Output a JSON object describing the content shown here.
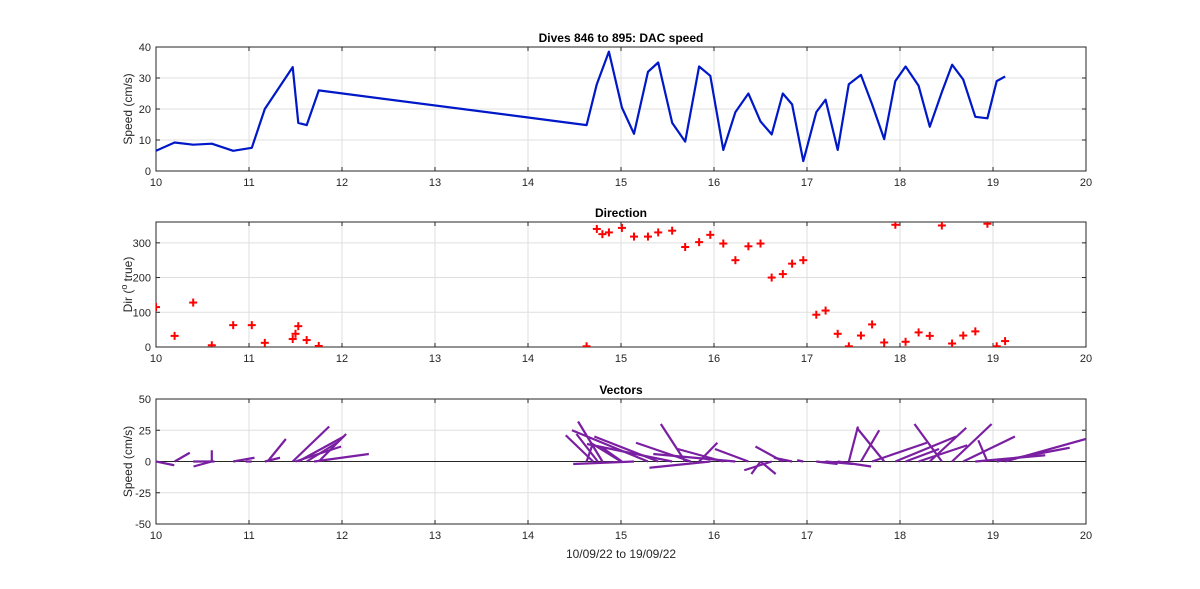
{
  "chart_data": [
    {
      "type": "line",
      "title": "Dives 846 to 895: DAC speed",
      "xlabel": "",
      "ylabel": "Speed (cm/s)",
      "xlim": [
        10,
        20
      ],
      "ylim": [
        0,
        40
      ],
      "xticks": [
        "10",
        "11",
        "12",
        "13",
        "14",
        "15",
        "16",
        "17",
        "18",
        "19",
        "20"
      ],
      "yticks": [
        "0",
        "10",
        "20",
        "30",
        "40"
      ],
      "grid": true,
      "color": "#0018c8",
      "series": [
        {
          "x": [
            10.0,
            10.2,
            10.4,
            10.6,
            10.83,
            11.03,
            11.17,
            11.47,
            11.53,
            11.62,
            11.75,
            14.63,
            14.74,
            14.87,
            15.01,
            15.14,
            15.29,
            15.4,
            15.55,
            15.69,
            15.84,
            15.96,
            16.1,
            16.23,
            16.37,
            16.5,
            16.62,
            16.74,
            16.84,
            16.96,
            17.1,
            17.2,
            17.33,
            17.45,
            17.58,
            17.7,
            17.83,
            17.95,
            18.06,
            18.2,
            18.32,
            18.45,
            18.56,
            18.68,
            18.81,
            18.94,
            19.04,
            19.13
          ],
          "y": [
            6.5,
            9.2,
            8.5,
            8.8,
            6.5,
            7.5,
            20,
            33.5,
            15.5,
            14.8,
            26,
            14.8,
            28,
            38.5,
            20.5,
            12,
            32,
            35,
            15.5,
            9.5,
            33.7,
            30.7,
            6.8,
            19,
            25,
            16,
            11.8,
            25,
            21.5,
            3.2,
            19,
            23,
            6.8,
            28,
            31,
            21.5,
            10.3,
            29,
            33.7,
            27.5,
            14.3,
            25.5,
            34.3,
            29.5,
            17.5,
            17,
            29,
            30.5
          ]
        }
      ]
    },
    {
      "type": "scatter",
      "title": "Direction",
      "xlabel": "",
      "ylabel": "Dir (° true)",
      "ylabel_parts": [
        "Dir (",
        "o",
        " true)"
      ],
      "xlim": [
        10,
        20
      ],
      "ylim": [
        0,
        360
      ],
      "xticks": [
        "10",
        "11",
        "12",
        "13",
        "14",
        "15",
        "16",
        "17",
        "18",
        "19",
        "20"
      ],
      "yticks": [
        "0",
        "100",
        "200",
        "300"
      ],
      "grid": true,
      "marker": "+",
      "color": "#ff0000",
      "series": [
        {
          "x": [
            10.0,
            10.2,
            10.4,
            10.6,
            10.83,
            11.03,
            11.17,
            11.47,
            11.5,
            11.53,
            11.62,
            11.75,
            14.63,
            14.74,
            14.8,
            14.87,
            15.01,
            15.14,
            15.29,
            15.4,
            15.55,
            15.69,
            15.84,
            15.96,
            16.1,
            16.23,
            16.37,
            16.5,
            16.62,
            16.74,
            16.84,
            16.96,
            17.1,
            17.2,
            17.33,
            17.45,
            17.58,
            17.7,
            17.83,
            17.95,
            18.06,
            18.2,
            18.32,
            18.45,
            18.56,
            18.68,
            18.81,
            18.94,
            19.04,
            19.13
          ],
          "y": [
            115,
            32,
            128,
            5,
            63,
            63,
            12,
            23,
            38,
            60,
            20,
            3,
            2,
            340,
            325,
            330,
            343,
            318,
            318,
            330,
            335,
            288,
            302,
            323,
            298,
            250,
            290,
            298,
            200,
            210,
            240,
            250,
            93,
            105,
            38,
            2,
            33,
            65,
            13,
            352,
            15,
            42,
            32,
            350,
            10,
            33,
            45,
            355,
            2,
            17
          ]
        }
      ]
    },
    {
      "type": "vector",
      "title": "Vectors",
      "xlabel": "10/09/22 to 19/09/22",
      "ylabel": "Speed (cm/s)",
      "xlim": [
        10,
        20
      ],
      "ylim": [
        -50,
        50
      ],
      "xticks": [
        "10",
        "11",
        "12",
        "13",
        "14",
        "15",
        "16",
        "17",
        "18",
        "19",
        "20"
      ],
      "yticks": [
        "-50",
        "-25",
        "0",
        "25",
        "50"
      ],
      "grid": true,
      "color": "#7a1fa2",
      "vectors": [
        {
          "x": 10.0,
          "u": 6,
          "v": -3
        },
        {
          "x": 10.2,
          "u": 5,
          "v": 7
        },
        {
          "x": 10.4,
          "u": 7,
          "v": 0
        },
        {
          "x": 10.6,
          "u": 0,
          "v": 9
        },
        {
          "x": 10.6,
          "u": -6,
          "v": -4
        },
        {
          "x": 10.83,
          "u": 7,
          "v": 3
        },
        {
          "x": 11.03,
          "u": -2,
          "v": 0
        },
        {
          "x": 11.17,
          "u": 5,
          "v": 3
        },
        {
          "x": 11.2,
          "u": 6,
          "v": 18
        },
        {
          "x": 11.47,
          "u": 12,
          "v": 28
        },
        {
          "x": 11.5,
          "u": 15,
          "v": 12
        },
        {
          "x": 11.53,
          "u": 15,
          "v": 20
        },
        {
          "x": 11.62,
          "u": 10,
          "v": 15
        },
        {
          "x": 11.7,
          "u": 18,
          "v": 6
        },
        {
          "x": 11.75,
          "u": 9,
          "v": 22
        },
        {
          "x": 14.63,
          "u": 2,
          "v": 14
        },
        {
          "x": 14.7,
          "u": -9,
          "v": 21
        },
        {
          "x": 14.75,
          "u": -7,
          "v": 22
        },
        {
          "x": 14.8,
          "u": -8,
          "v": 32
        },
        {
          "x": 15.01,
          "u": -7,
          "v": 12
        },
        {
          "x": 15.0,
          "u": -10,
          "v": 15
        },
        {
          "x": 15.14,
          "u": -20,
          "v": -2
        },
        {
          "x": 15.29,
          "u": -25,
          "v": 25
        },
        {
          "x": 15.4,
          "u": -21,
          "v": 20
        },
        {
          "x": 15.55,
          "u": -28,
          "v": 14
        },
        {
          "x": 15.69,
          "u": -8,
          "v": 30
        },
        {
          "x": 15.75,
          "u": -18,
          "v": 15
        },
        {
          "x": 15.84,
          "u": 6,
          "v": 15
        },
        {
          "x": 15.96,
          "u": -20,
          "v": -5
        },
        {
          "x": 16.1,
          "u": -15,
          "v": 10
        },
        {
          "x": 16.23,
          "u": -27,
          "v": 6
        },
        {
          "x": 16.37,
          "u": -11,
          "v": 10
        },
        {
          "x": 16.5,
          "u": -3,
          "v": -10
        },
        {
          "x": 16.62,
          "u": -9,
          "v": -7
        },
        {
          "x": 16.5,
          "u": 5,
          "v": -10
        },
        {
          "x": 16.74,
          "u": -9,
          "v": 12
        },
        {
          "x": 16.84,
          "u": -6,
          "v": 3
        },
        {
          "x": 16.96,
          "u": -2,
          "v": 1
        },
        {
          "x": 17.1,
          "u": 7,
          "v": -2
        },
        {
          "x": 17.2,
          "u": 9,
          "v": -2
        },
        {
          "x": 17.33,
          "u": 11,
          "v": -4
        },
        {
          "x": 17.45,
          "u": 3,
          "v": 28
        },
        {
          "x": 17.58,
          "u": 6,
          "v": 25
        },
        {
          "x": 17.7,
          "u": 18,
          "v": 15
        },
        {
          "x": 17.83,
          "u": -9,
          "v": 27
        },
        {
          "x": 17.95,
          "u": 20,
          "v": 20
        },
        {
          "x": 18.06,
          "u": 11,
          "v": 10
        },
        {
          "x": 18.2,
          "u": 16,
          "v": 13
        },
        {
          "x": 18.32,
          "u": 12,
          "v": 27
        },
        {
          "x": 18.45,
          "u": -9,
          "v": 30
        },
        {
          "x": 18.56,
          "u": 13,
          "v": 30
        },
        {
          "x": 18.68,
          "u": 17,
          "v": 20
        },
        {
          "x": 18.81,
          "u": 23,
          "v": 5
        },
        {
          "x": 18.94,
          "u": -3,
          "v": 17
        },
        {
          "x": 19.04,
          "u": 24,
          "v": 11
        },
        {
          "x": 19.13,
          "u": 28,
          "v": 19
        }
      ]
    }
  ]
}
